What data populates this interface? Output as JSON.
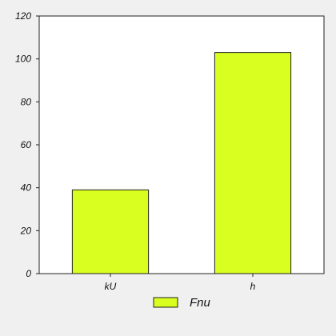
{
  "chart_data": {
    "type": "bar",
    "categories": [
      "kU",
      "h"
    ],
    "series": [
      {
        "name": "Fnu",
        "values": [
          39,
          103
        ],
        "color": "#d8ff20"
      }
    ],
    "ylim": [
      0,
      120
    ],
    "yticks": [
      0,
      20,
      40,
      60,
      80,
      100,
      120
    ],
    "ytick_labels": [
      "0",
      "20",
      "40",
      "60",
      "80",
      "100",
      "120"
    ],
    "grid": false,
    "legend": {
      "position": "bottom-center"
    },
    "background": "#f0f0f0",
    "plot_background": "#ffffff"
  }
}
